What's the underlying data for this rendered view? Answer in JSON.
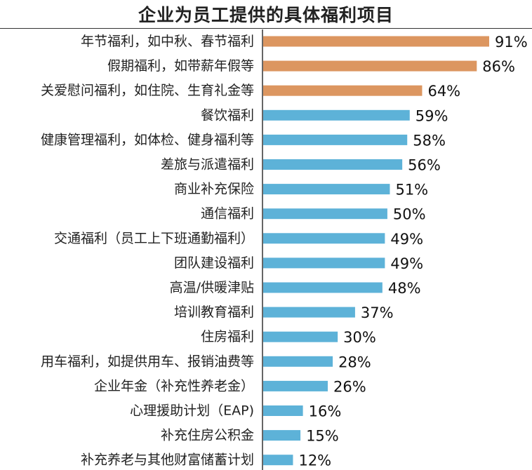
{
  "chart_data": {
    "type": "bar",
    "orientation": "horizontal",
    "title": "企业为员工提供的具体福利项目",
    "xlabel": "",
    "ylabel": "",
    "xlim": [
      0,
      100
    ],
    "value_suffix": "%",
    "categories": [
      "年节福利，如中秋、春节福利",
      "假期福利，如带薪年假等",
      "关爱慰问福利，如住院、生育礼金等",
      "餐饮福利",
      "健康管理福利，如体检、健身福利等",
      "差旅与派遣福利",
      "商业补充保险",
      "通信福利",
      "交通福利（员工上下班通勤福利）",
      "团队建设福利",
      "高温/供暖津贴",
      "培训教育福利",
      "住房福利",
      "用车福利，如提供用车、报销油费等",
      "企业年金（补充性养老金）",
      "心理援助计划（EAP)",
      "补充住房公积金",
      "补充养老与其他财富储蓄计划"
    ],
    "values": [
      91,
      86,
      64,
      59,
      58,
      56,
      51,
      50,
      49,
      49,
      48,
      37,
      30,
      28,
      26,
      16,
      15,
      12
    ],
    "bar_colors": [
      "#DC9660",
      "#DC9660",
      "#DC9660",
      "#5DB2D8",
      "#5DB2D8",
      "#5DB2D8",
      "#5DB2D8",
      "#5DB2D8",
      "#5DB2D8",
      "#5DB2D8",
      "#5DB2D8",
      "#5DB2D8",
      "#5DB2D8",
      "#5DB2D8",
      "#5DB2D8",
      "#5DB2D8",
      "#5DB2D8",
      "#5DB2D8"
    ],
    "grid": false,
    "legend": "none"
  }
}
